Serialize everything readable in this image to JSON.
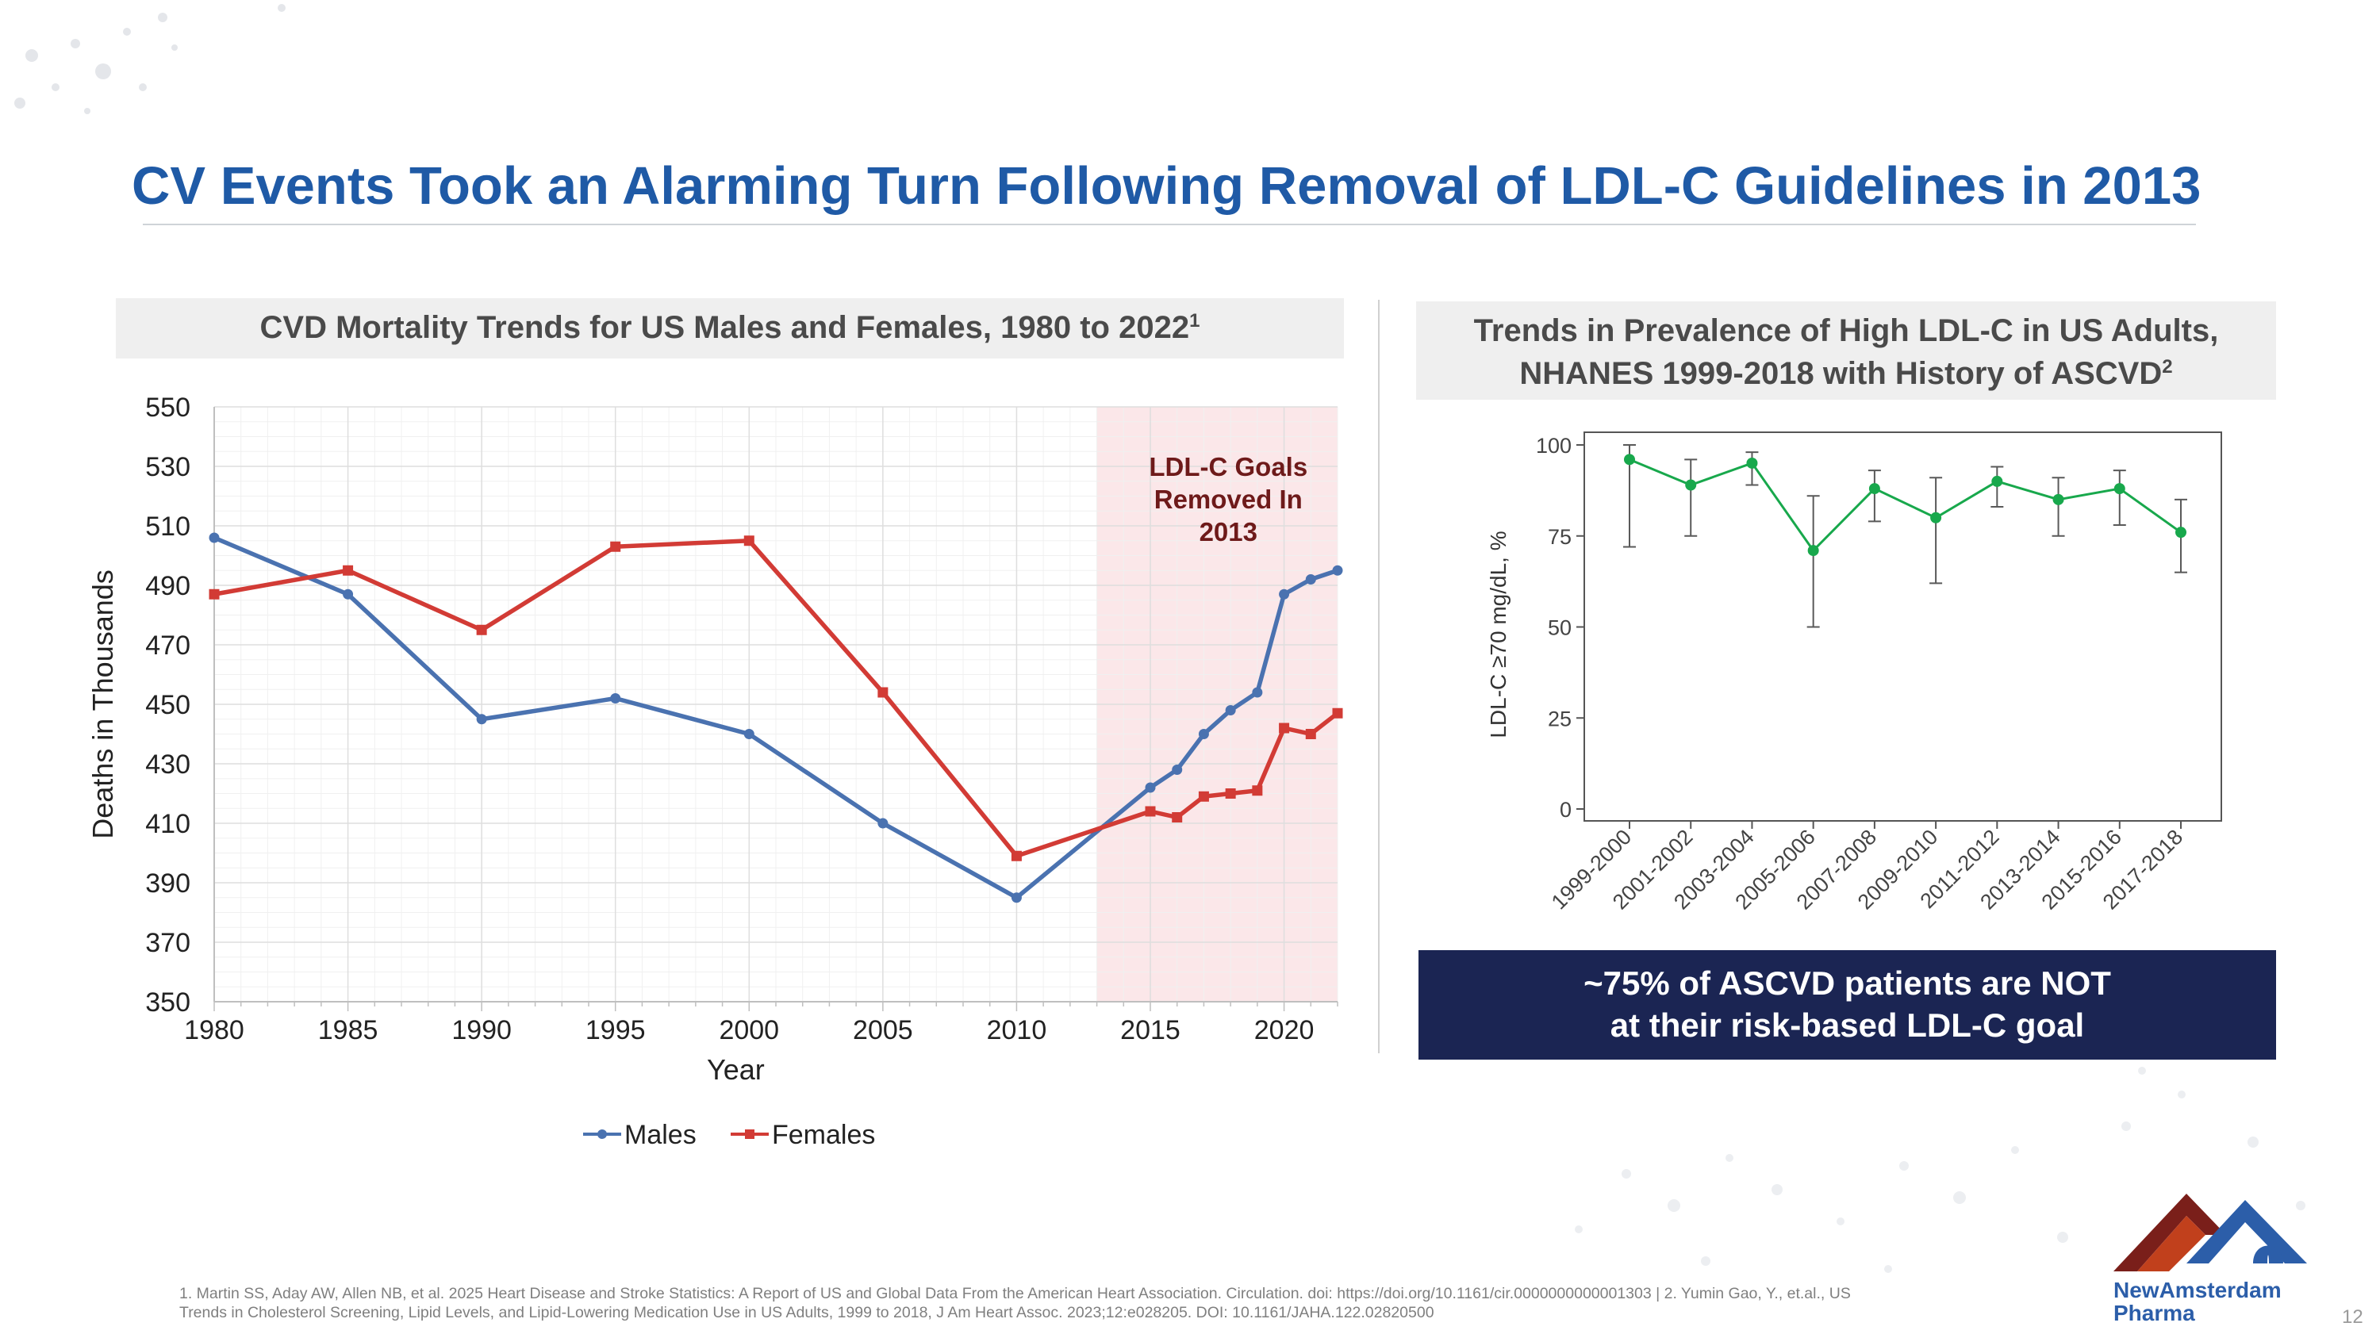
{
  "slide": {
    "title": "CV Events Took an Alarming Turn Following Removal of LDL-C Guidelines in 2013",
    "page_number": "12"
  },
  "left_panel": {
    "heading": "CVD Mortality Trends for US Males and Females, 1980 to 2022",
    "heading_ref": "1"
  },
  "right_panel": {
    "heading_line1": "Trends in Prevalence of High LDL-C in US Adults,",
    "heading_line2": "NHANES 1999-2018 with History of ASCVD",
    "heading_ref": "2"
  },
  "callout": {
    "line1": "~75% of ASCVD patients are NOT",
    "line2": "at their risk-based LDL-C goal"
  },
  "footnote": {
    "line1": "1. Martin SS, Aday AW, Allen NB, et al. 2025 Heart Disease and Stroke Statistics: A Report of US and Global Data From the American Heart Association. Circulation. doi: https://doi.org/10.1161/cir.0000000000001303 |  2. Yumin Gao, Y., et.al., US",
    "line2": "Trends in Cholesterol Screening, Lipid Levels, and Lipid-Lowering Medication Use in US Adults, 1999 to 2018, J Am Heart Assoc. 2023;12:e028205. DOI: 10.1161/JAHA.122.02820500"
  },
  "logo": {
    "line1": "NewAmsterdam",
    "line2": "Pharma"
  },
  "colors": {
    "title": "#1f5aa6",
    "males": "#4a72b0",
    "females": "#d23b35",
    "nhanes": "#18a84c",
    "error_bar": "#595959",
    "shade": "#fbe7e9",
    "shade_label": "#6e1a1a",
    "callout_bg": "#1b2553"
  },
  "chart_data": [
    {
      "type": "line",
      "title": "CVD Mortality Trends for US Males and Females, 1980 to 2022",
      "xlabel": "Year",
      "ylabel": "Deaths in Thousands",
      "xlim": [
        1980,
        2022
      ],
      "ylim": [
        350,
        550
      ],
      "x_ticks": [
        1980,
        1985,
        1990,
        1995,
        2000,
        2005,
        2010,
        2015,
        2020
      ],
      "y_ticks": [
        350,
        370,
        390,
        410,
        430,
        450,
        470,
        490,
        510,
        530,
        550
      ],
      "grid": true,
      "legend_position": "bottom",
      "shaded_region": {
        "x_start": 2013,
        "x_end": 2022,
        "label": [
          "LDL-C Goals",
          "Removed In",
          "2013"
        ]
      },
      "series": [
        {
          "name": "Males",
          "marker": "circle",
          "x": [
            1980,
            1985,
            1990,
            1995,
            2000,
            2005,
            2010,
            2015,
            2016,
            2017,
            2018,
            2019,
            2020,
            2021,
            2022
          ],
          "values": [
            506,
            487,
            445,
            452,
            440,
            410,
            385,
            422,
            428,
            440,
            448,
            454,
            487,
            492,
            495
          ]
        },
        {
          "name": "Females",
          "marker": "square",
          "x": [
            1980,
            1985,
            1990,
            1995,
            2000,
            2005,
            2010,
            2015,
            2016,
            2017,
            2018,
            2019,
            2020,
            2021,
            2022
          ],
          "values": [
            487,
            495,
            475,
            503,
            505,
            454,
            399,
            414,
            412,
            419,
            420,
            421,
            442,
            440,
            447
          ]
        }
      ]
    },
    {
      "type": "line",
      "title": "Trends in Prevalence of High LDL-C in US Adults, NHANES 1999-2018 with History of ASCVD",
      "xlabel": "",
      "ylabel": "LDL-C ≥70 mg/dL, %",
      "ylim": [
        0,
        100
      ],
      "y_ticks": [
        0,
        25,
        50,
        75,
        100
      ],
      "grid": false,
      "categories": [
        "1999-2000",
        "2001-2002",
        "2003-2004",
        "2005-2006",
        "2007-2008",
        "2009-2010",
        "2011-2012",
        "2013-2014",
        "2015-2016",
        "2017-2018"
      ],
      "series": [
        {
          "name": "LDL-C ≥70 mg/dL",
          "values": [
            96,
            89,
            95,
            71,
            88,
            80,
            90,
            85,
            88,
            76
          ],
          "error_low": [
            72,
            75,
            89,
            50,
            79,
            62,
            83,
            75,
            78,
            65
          ],
          "error_high": [
            100,
            96,
            98,
            86,
            93,
            91,
            94,
            91,
            93,
            85
          ]
        }
      ]
    }
  ]
}
